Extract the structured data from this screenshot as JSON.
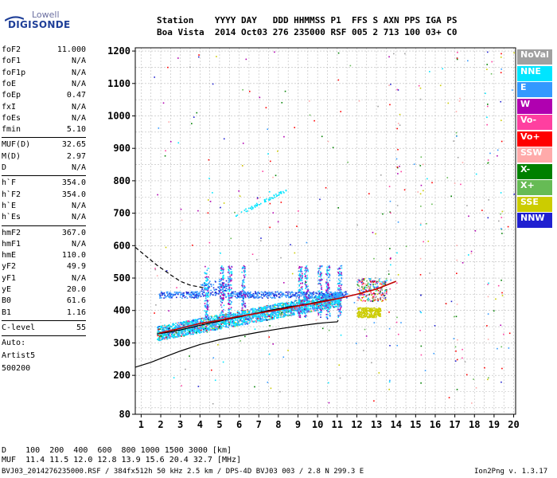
{
  "logo": {
    "top": "Lowell",
    "main": "DIGISONDE"
  },
  "header": {
    "labels_line": "Station    YYYY DAY   DDD HHMMSS P1  FFS S AXN PPS IGA PS",
    "values_line": "Boa Vista  2014 Oct03 276 235000 RSF 005 2 713 100 03+ C0"
  },
  "params": {
    "group1": [
      {
        "key": "foF2",
        "value": "11.000"
      },
      {
        "key": "foF1",
        "value": "N/A"
      },
      {
        "key": "foF1p",
        "value": "N/A"
      },
      {
        "key": "foE",
        "value": "N/A"
      },
      {
        "key": "foEp",
        "value": "0.47"
      },
      {
        "key": "fxI",
        "value": "N/A"
      },
      {
        "key": "foEs",
        "value": "N/A"
      },
      {
        "key": "fmin",
        "value": "5.10"
      }
    ],
    "group2": [
      {
        "key": "MUF(D)",
        "value": "32.65"
      },
      {
        "key": "M(D)",
        "value": "2.97"
      },
      {
        "key": "D",
        "value": "N/A"
      }
    ],
    "group3": [
      {
        "key": "h`F",
        "value": "354.0"
      },
      {
        "key": "h`F2",
        "value": "354.0"
      },
      {
        "key": "h`E",
        "value": "N/A"
      },
      {
        "key": "h`Es",
        "value": "N/A"
      }
    ],
    "group4": [
      {
        "key": "hmF2",
        "value": "367.0"
      },
      {
        "key": "hmF1",
        "value": "N/A"
      },
      {
        "key": "hmE",
        "value": "110.0"
      },
      {
        "key": "yF2",
        "value": "49.9"
      },
      {
        "key": "yF1",
        "value": "N/A"
      },
      {
        "key": "yE",
        "value": "20.0"
      },
      {
        "key": "B0",
        "value": "61.6"
      },
      {
        "key": "B1",
        "value": "1.16"
      }
    ],
    "group5": [
      {
        "key": "C-level",
        "value": "55"
      }
    ],
    "auto": [
      "Auto:",
      "Artist5",
      "500200"
    ]
  },
  "legend": [
    {
      "label": "NoVal",
      "color": "#a0a0a0"
    },
    {
      "label": "NNE",
      "color": "#00e5ff"
    },
    {
      "label": "E",
      "color": "#3399ff"
    },
    {
      "label": "W",
      "color": "#b000b0"
    },
    {
      "label": "Vo-",
      "color": "#ff3fa0"
    },
    {
      "label": "Vo+",
      "color": "#ff0000"
    },
    {
      "label": "SSW",
      "color": "#ffaaaa"
    },
    {
      "label": "X-",
      "color": "#008000"
    },
    {
      "label": "X+",
      "color": "#66bb55"
    },
    {
      "label": "SSE",
      "color": "#cccc00"
    },
    {
      "label": "NNW",
      "color": "#2020d0"
    }
  ],
  "bottom": {
    "d_line": "D    100  200  400  600  800 1000 1500 3000 [km]",
    "muf_line": "MUF  11.4 11.5 12.0 12.8 13.9 15.6 20.4 32.7 [MHz]",
    "file_line": "BVJ03_2014276235000.RSF / 384fx512h 50 kHz 2.5 km / DPS-4D BVJ03 003 / 2.8 N 299.3 E",
    "version": "Ion2Png v. 1.3.17"
  },
  "chart_data": {
    "type": "scatter",
    "title": "",
    "xlabel": "",
    "ylabel": "",
    "xlim": [
      0.7,
      20.1
    ],
    "ylim": [
      80,
      1210
    ],
    "x_ticks": [
      1,
      2,
      3,
      4,
      5,
      6,
      7,
      8,
      9,
      10,
      11,
      12,
      13,
      14,
      15,
      16,
      17,
      18,
      19,
      20
    ],
    "y_ticks": [
      80,
      200,
      300,
      400,
      500,
      600,
      700,
      800,
      900,
      1000,
      1100,
      1200
    ],
    "grid": true,
    "series": [
      {
        "name": "traced O-trace",
        "color": "#000000",
        "style": "solid",
        "x": [
          1.8,
          2.5,
          3,
          3.5,
          4,
          4.5,
          5,
          5.5,
          6,
          6.5,
          7,
          7.5,
          8,
          8.5,
          9,
          9.5,
          10,
          10.5,
          11
        ],
        "y": [
          328,
          334,
          340,
          347,
          354,
          361,
          367,
          374,
          380,
          387,
          393,
          400,
          405,
          411,
          415,
          420,
          426,
          432,
          436
        ]
      },
      {
        "name": "traced X-trace",
        "color": "#c00000",
        "style": "solid",
        "x": [
          1.9,
          3,
          4,
          5,
          6,
          7,
          8,
          9,
          10,
          11,
          12,
          13,
          14
        ],
        "y": [
          330,
          345,
          360,
          370,
          382,
          392,
          402,
          414,
          424,
          436,
          450,
          466,
          490
        ]
      },
      {
        "name": "true height profile",
        "color": "#000000",
        "style": "solid",
        "x": [
          0.7,
          1.5,
          2,
          3,
          4,
          5,
          6,
          7,
          8,
          9,
          10,
          10.5,
          11,
          11.05
        ],
        "y": [
          225,
          240,
          252,
          275,
          295,
          310,
          322,
          333,
          343,
          352,
          360,
          363,
          365,
          370
        ]
      },
      {
        "name": "extrapolated topside",
        "color": "#000000",
        "style": "dashed",
        "x": [
          0.7,
          1.2,
          1.8,
          2.5,
          3,
          3.5,
          4.2
        ],
        "y": [
          595,
          570,
          540,
          510,
          490,
          478,
          470
        ]
      }
    ]
  }
}
